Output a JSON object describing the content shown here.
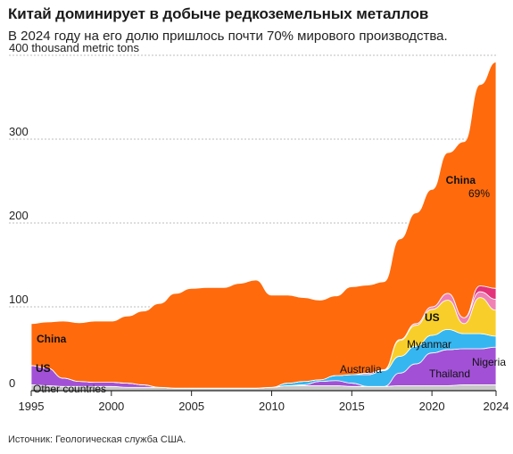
{
  "header": {
    "title": "Китай доминирует в добыче редкоземельных металлов",
    "subtitle": "В 2024 году на его долю пришлось почти 70% мирового производства."
  },
  "source": "Источник: Геологическая служба США.",
  "chart_data": {
    "type": "area",
    "stacked": true,
    "y_unit_label": "thousand metric tons",
    "ylim": [
      0,
      400
    ],
    "y_ticks": [
      0,
      100,
      200,
      300,
      400
    ],
    "x_ticks": [
      1995,
      2000,
      2005,
      2010,
      2015,
      2020,
      2024
    ],
    "xlim": [
      1995,
      2024
    ],
    "grid": "horizontal-dashed",
    "x": [
      1995,
      1996,
      1997,
      1998,
      1999,
      2000,
      2001,
      2002,
      2003,
      2004,
      2005,
      2006,
      2007,
      2008,
      2009,
      2010,
      2011,
      2012,
      2013,
      2014,
      2015,
      2016,
      2017,
      2018,
      2019,
      2020,
      2021,
      2022,
      2023,
      2024
    ],
    "series": [
      {
        "name": "Other countries",
        "color": "#c7c7c7",
        "values": [
          7,
          6,
          5,
          5,
          5,
          5,
          4,
          4,
          4,
          3,
          3,
          3,
          3,
          3,
          3,
          4,
          6,
          6,
          6,
          6,
          5,
          5,
          5,
          6,
          6,
          6,
          6,
          7,
          7,
          7
        ]
      },
      {
        "name": "US",
        "color": "#a251d6",
        "values": [
          23,
          21,
          10,
          6,
          5,
          5,
          5,
          3,
          0,
          0,
          0,
          0,
          0,
          0,
          0,
          0,
          0,
          1,
          5,
          6,
          4,
          0,
          0,
          15,
          26,
          39,
          43,
          43,
          43,
          45
        ]
      },
      {
        "name": "Australia",
        "color": "#36b6f0",
        "values": [
          0,
          0,
          0,
          0,
          0,
          0,
          0,
          0,
          0,
          0,
          0,
          0,
          0,
          0,
          0,
          0,
          3,
          4,
          2,
          6,
          10,
          14,
          19,
          20,
          21,
          21,
          24,
          18,
          18,
          13
        ]
      },
      {
        "name": "Myanmar",
        "color": "#f8cf2a",
        "values": [
          0,
          0,
          0,
          0,
          0,
          0,
          0,
          0,
          0,
          0,
          0,
          0,
          0,
          0,
          0,
          0,
          0,
          0,
          0,
          0,
          0,
          0,
          0,
          19,
          25,
          31,
          35,
          12,
          43,
          31
        ]
      },
      {
        "name": "Thailand",
        "color": "#f081b4",
        "values": [
          0,
          0,
          0,
          0,
          0,
          0,
          0,
          0,
          0,
          0,
          0,
          0,
          0,
          0,
          0,
          0,
          0,
          0,
          0,
          0,
          0,
          2,
          1,
          1,
          2,
          3,
          8,
          7,
          7,
          13
        ]
      },
      {
        "name": "Nigeria",
        "color": "#e3337a",
        "values": [
          0,
          0,
          0,
          0,
          0,
          0,
          0,
          0,
          0,
          0,
          0,
          0,
          0,
          0,
          0,
          0,
          0,
          0,
          0,
          0,
          0,
          0,
          0,
          0,
          0,
          0,
          0,
          0,
          7,
          13
        ]
      },
      {
        "name": "China",
        "color": "#ff6a0d",
        "values": [
          50,
          55,
          68,
          70,
          73,
          73,
          80,
          88,
          100,
          113,
          119,
          120,
          120,
          125,
          129,
          110,
          105,
          100,
          95,
          95,
          105,
          105,
          105,
          120,
          132,
          140,
          168,
          210,
          240,
          270
        ]
      }
    ],
    "annotations": [
      {
        "series": "China",
        "text": "China",
        "share": "69%"
      },
      {
        "series": "China",
        "text": "China"
      },
      {
        "series": "US",
        "text": "US"
      },
      {
        "series": "US",
        "text": "US"
      },
      {
        "series": "Myanmar",
        "text": "Myanmar"
      },
      {
        "series": "Australia",
        "text": "Australia"
      },
      {
        "series": "Thailand",
        "text": "Thailand"
      },
      {
        "series": "Nigeria",
        "text": "Nigeria"
      },
      {
        "series": "Other countries",
        "text": "Other countries"
      }
    ]
  }
}
